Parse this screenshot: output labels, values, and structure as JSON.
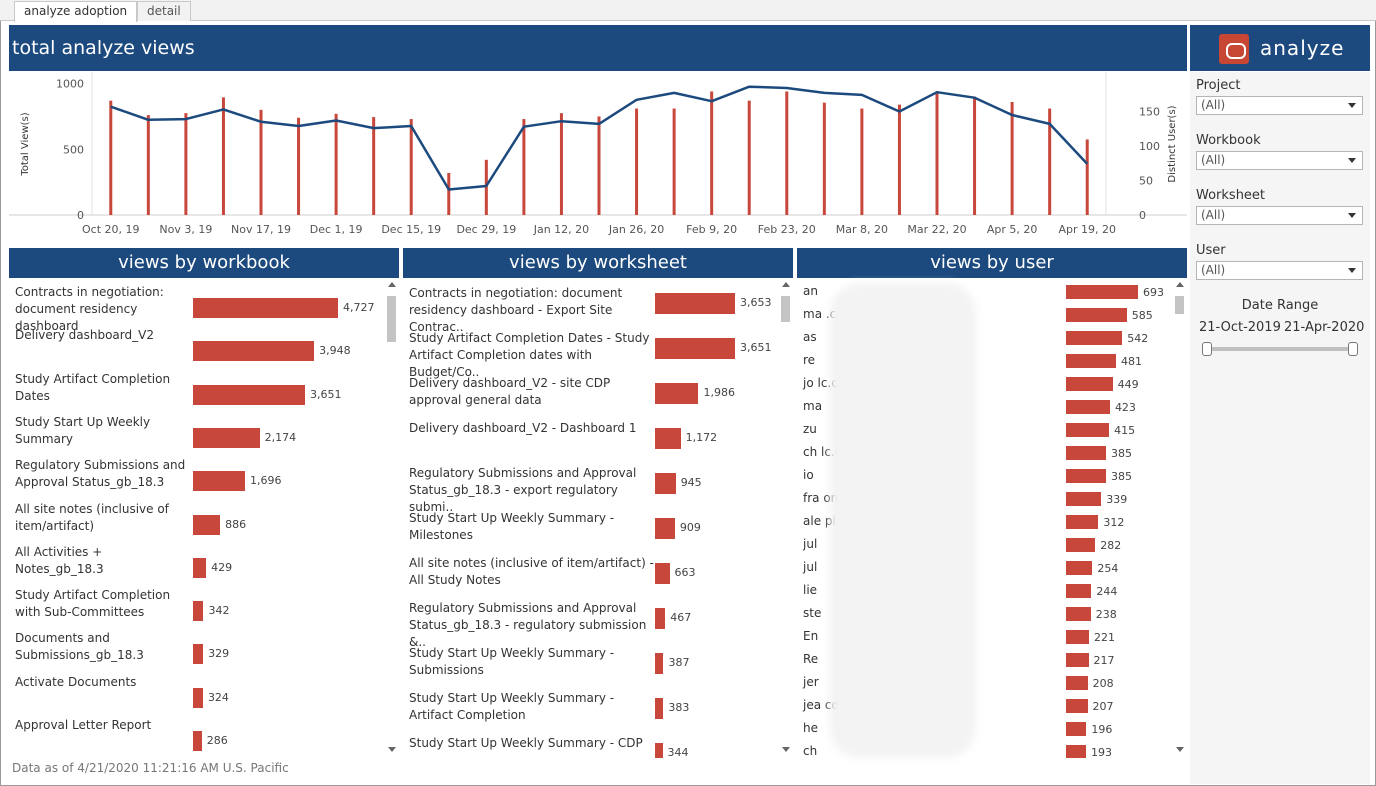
{
  "tabs": [
    "analyze adoption",
    "detail"
  ],
  "header": {
    "title": "total analyze views",
    "brand_name": "analyze",
    "brand_icon": "oracle-icon"
  },
  "colors": {
    "banner": "#1c4a7e",
    "bar": "#c8473b",
    "line": "#1c4a7e"
  },
  "chart_data": {
    "type": "bar",
    "x": [
      "Oct 20, 19",
      "Oct 27, 19",
      "Nov 3, 19",
      "Nov 10, 19",
      "Nov 17, 19",
      "Nov 24, 19",
      "Dec 1, 19",
      "Dec 8, 19",
      "Dec 15, 19",
      "Dec 22, 19",
      "Dec 29, 19",
      "Jan 5, 20",
      "Jan 12, 20",
      "Jan 19, 20",
      "Jan 26, 20",
      "Feb 2, 20",
      "Feb 9, 20",
      "Feb 16, 20",
      "Feb 23, 20",
      "Mar 1, 20",
      "Mar 8, 20",
      "Mar 15, 20",
      "Mar 22, 20",
      "Mar 29, 20",
      "Apr 5, 20",
      "Apr 12, 20",
      "Apr 19, 20"
    ],
    "tick_labels": [
      "Oct 20, 19",
      "Nov 3, 19",
      "Nov 17, 19",
      "Dec 1, 19",
      "Dec 15, 19",
      "Dec 29, 19",
      "Jan 12, 20",
      "Jan 26, 20",
      "Feb 9, 20",
      "Feb 23, 20",
      "Mar 8, 20",
      "Mar 22, 20",
      "Apr 5, 20",
      "Apr 19, 20"
    ],
    "series": [
      {
        "name": "Total View(s)",
        "type": "bar",
        "axis": "left",
        "values": [
          870,
          760,
          775,
          895,
          800,
          740,
          770,
          745,
          730,
          320,
          420,
          730,
          775,
          750,
          810,
          810,
          940,
          870,
          940,
          855,
          810,
          840,
          930,
          900,
          860,
          810,
          575
        ]
      },
      {
        "name": "Distinct User(s)",
        "type": "line",
        "axis": "right",
        "values": [
          157,
          138,
          139,
          153,
          135,
          129,
          137,
          126,
          129,
          37,
          42,
          128,
          136,
          132,
          167,
          177,
          165,
          186,
          184,
          177,
          174,
          150,
          178,
          170,
          145,
          132,
          74
        ]
      }
    ],
    "ylabel": "Total View(s)",
    "ylim": [
      0,
      1050
    ],
    "yticks": [
      0,
      500,
      1000
    ],
    "y2label": "Distinct User(s)",
    "y2lim": [
      0,
      200
    ],
    "y2ticks": [
      0,
      50,
      100,
      150
    ],
    "grid": false
  },
  "sections": {
    "workbook": "views by workbook",
    "worksheet": "views by worksheet",
    "user": "views by user"
  },
  "workbooks": [
    {
      "label": "Contracts in negotiation: document residency dashboard",
      "value": 4727,
      "display": "4,727"
    },
    {
      "label": "Delivery dashboard_V2",
      "value": 3948,
      "display": "3,948"
    },
    {
      "label": "Study Artifact Completion Dates",
      "value": 3651,
      "display": "3,651"
    },
    {
      "label": "Study Start Up Weekly Summary",
      "value": 2174,
      "display": "2,174"
    },
    {
      "label": "Regulatory Submissions and Approval Status_gb_18.3",
      "value": 1696,
      "display": "1,696"
    },
    {
      "label": "All site notes (inclusive of item/artifact)",
      "value": 886,
      "display": "886"
    },
    {
      "label": "All Activities + Notes_gb_18.3",
      "value": 429,
      "display": "429"
    },
    {
      "label": "Study Artifact Completion with Sub-Committees",
      "value": 342,
      "display": "342"
    },
    {
      "label": "Documents and Submissions_gb_18.3",
      "value": 329,
      "display": "329"
    },
    {
      "label": "Activate Documents",
      "value": 324,
      "display": "324"
    },
    {
      "label": "Approval Letter Report",
      "value": 286,
      "display": "286"
    }
  ],
  "worksheets": [
    {
      "label": "Contracts in negotiation: document residency dashboard - Export Site Contrac..",
      "value": 3653,
      "display": "3,653"
    },
    {
      "label": "Study Artifact Completion Dates - Study Artifact Completion dates with Budget/Co..",
      "value": 3651,
      "display": "3,651"
    },
    {
      "label": "Delivery dashboard_V2 - site CDP approval general data",
      "value": 1986,
      "display": "1,986"
    },
    {
      "label": "Delivery dashboard_V2 - Dashboard 1",
      "value": 1172,
      "display": "1,172"
    },
    {
      "label": "Regulatory Submissions and Approval Status_gb_18.3 - export regulatory submi..",
      "value": 945,
      "display": "945"
    },
    {
      "label": "Study Start Up Weekly Summary - Milestones",
      "value": 909,
      "display": "909"
    },
    {
      "label": "All site notes (inclusive of item/artifact) - All Study Notes",
      "value": 663,
      "display": "663"
    },
    {
      "label": "Regulatory Submissions and Approval Status_gb_18.3 - regulatory submission &..",
      "value": 467,
      "display": "467"
    },
    {
      "label": "Study Start Up Weekly Summary - Submissions",
      "value": 387,
      "display": "387"
    },
    {
      "label": "Study Start Up Weekly Summary - Artifact Completion",
      "value": 383,
      "display": "383"
    },
    {
      "label": "Study Start Up Weekly Summary - CDP",
      "value": 344,
      "display": "344"
    }
  ],
  "users": [
    {
      "label": "an",
      "value": 693
    },
    {
      "label": "ma                                           .com",
      "value": 585
    },
    {
      "label": "as",
      "value": 542
    },
    {
      "label": "re",
      "value": 481
    },
    {
      "label": "jo                                           lc.com",
      "value": 449
    },
    {
      "label": "ma",
      "value": 423
    },
    {
      "label": "zu",
      "value": 415
    },
    {
      "label": "ch                                           lc.com",
      "value": 385
    },
    {
      "label": "io",
      "value": 385
    },
    {
      "label": "fra                                          om",
      "value": 339
    },
    {
      "label": "ale                                          plc.com",
      "value": 312
    },
    {
      "label": "jul",
      "value": 282
    },
    {
      "label": "jul",
      "value": 254
    },
    {
      "label": "lie",
      "value": 244
    },
    {
      "label": "ste",
      "value": 238
    },
    {
      "label": "En",
      "value": 221
    },
    {
      "label": "Re",
      "value": 217
    },
    {
      "label": "jer",
      "value": 208
    },
    {
      "label": "jea                                          com",
      "value": 207
    },
    {
      "label": "he",
      "value": 196
    },
    {
      "label": "ch",
      "value": 193
    }
  ],
  "filters": {
    "project": {
      "label": "Project",
      "value": "(All)"
    },
    "workbook": {
      "label": "Workbook",
      "value": "(All)"
    },
    "worksheet": {
      "label": "Worksheet",
      "value": "(All)"
    },
    "user": {
      "label": "User",
      "value": "(All)"
    },
    "date_range": {
      "label": "Date Range",
      "start": "21-Oct-2019",
      "end": "21-Apr-2020",
      "start_fraction": 0,
      "end_fraction": 1
    }
  },
  "footer": "Data as of 4/21/2020 11:21:16 AM U.S. Pacific"
}
